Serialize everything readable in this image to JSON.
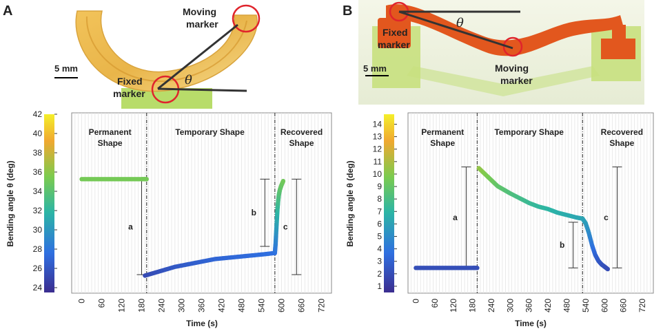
{
  "colors": {
    "dark_blue": "#3b2d8f",
    "blue": "#2f6fe0",
    "teal": "#2cb5a5",
    "green": "#7ccb4e",
    "orange": "#f0a830",
    "yellow": "#f4ef2a",
    "photo_a_specimen": "#e8c568",
    "photo_b_specimen": "#e2571e",
    "photo_green": "#b8dc6a",
    "marker_red": "#e0242c"
  },
  "panels": [
    {
      "label": "A",
      "photo": {
        "scale_bar": "5 mm",
        "moving_marker": [
          "Moving",
          "marker"
        ],
        "fixed_marker": [
          "Fixed",
          "marker"
        ],
        "angle_symbol": "θ"
      },
      "chart_data": {
        "type": "scatter",
        "title": "",
        "xlabel": "Time (s)",
        "ylabel": "Bending angle θ (deg)",
        "xlim": [
          -30,
          750
        ],
        "ylim": [
          23.5,
          42
        ],
        "x_ticks": [
          0,
          60,
          120,
          180,
          240,
          300,
          360,
          420,
          480,
          540,
          600,
          660,
          720
        ],
        "colorbar_ticks": [
          24,
          26,
          28,
          30,
          32,
          34,
          36,
          38,
          40,
          42
        ],
        "colorbar_range": [
          23.5,
          42
        ],
        "phase_boundaries": [
          195,
          580
        ],
        "phases": [
          {
            "lines": [
              "Permanent",
              "Shape"
            ],
            "x_center": 85
          },
          {
            "lines": [
              "Temporary Shape"
            ],
            "x_center": 385
          },
          {
            "lines": [
              "Recovered",
              "Shape"
            ],
            "x_center": 660
          }
        ],
        "series": [
          {
            "name": "permanent",
            "x": [
              0,
              30,
              60,
              90,
              120,
              150,
              180,
              195
            ],
            "y": [
              35.2,
              35.2,
              35.2,
              35.2,
              35.2,
              35.2,
              35.2,
              35.2
            ]
          },
          {
            "name": "temporary",
            "x": [
              190,
              220,
              250,
              280,
              310,
              340,
              370,
              400,
              430,
              460,
              490,
              520,
              550,
              575
            ],
            "y": [
              25.3,
              25.6,
              25.9,
              26.2,
              26.4,
              26.6,
              26.8,
              27.0,
              27.1,
              27.2,
              27.3,
              27.4,
              27.5,
              27.6
            ]
          },
          {
            "name": "recovery",
            "x": [
              580,
              582,
              584,
              586,
              588,
              590,
              592,
              595,
              600,
              605
            ],
            "y": [
              27.6,
              28.5,
              29.8,
              31.0,
              32.2,
              33.0,
              33.6,
              34.1,
              34.6,
              35.0
            ]
          }
        ],
        "brackets": [
          {
            "label": "a",
            "x": 180,
            "y1": 25.4,
            "y2": 35.2
          },
          {
            "label": "b",
            "x": 550,
            "y1": 28.3,
            "y2": 35.2
          },
          {
            "label": "c",
            "x": 645,
            "y1": 25.4,
            "y2": 35.2
          }
        ]
      }
    },
    {
      "label": "B",
      "photo": {
        "scale_bar": "5 mm",
        "moving_marker": [
          "Moving",
          "marker"
        ],
        "fixed_marker": [
          "Fixed",
          "marker"
        ],
        "angle_symbol": "θ"
      },
      "chart_data": {
        "type": "scatter",
        "title": "",
        "xlabel": "Time (s)",
        "ylabel": "Bending angle θ (deg)",
        "xlim": [
          -25,
          755
        ],
        "ylim": [
          0,
          15
        ],
        "x_ticks": [
          0,
          60,
          120,
          180,
          240,
          300,
          360,
          420,
          480,
          540,
          600,
          660,
          720
        ],
        "colorbar_ticks": [
          1,
          2,
          3,
          4,
          5,
          6,
          7,
          8,
          9,
          10,
          11,
          12,
          13,
          14
        ],
        "colorbar_range": [
          0.5,
          14.8
        ],
        "phase_boundaries": [
          195,
          530
        ],
        "phases": [
          {
            "lines": [
              "Permanent",
              "Shape"
            ],
            "x_center": 85
          },
          {
            "lines": [
              "Temporary Shape"
            ],
            "x_center": 360
          },
          {
            "lines": [
              "Recovered",
              "Shape"
            ],
            "x_center": 655
          }
        ],
        "series": [
          {
            "name": "permanent",
            "x": [
              0,
              30,
              60,
              90,
              120,
              150,
              180,
              195
            ],
            "y": [
              2.1,
              2.1,
              2.1,
              2.1,
              2.1,
              2.1,
              2.1,
              2.1
            ]
          },
          {
            "name": "temporary",
            "x": [
              200,
              220,
              240,
              260,
              280,
              300,
              330,
              360,
              390,
              420,
              450,
              480,
              510,
              530
            ],
            "y": [
              10.4,
              9.9,
              9.4,
              8.9,
              8.6,
              8.3,
              7.9,
              7.5,
              7.2,
              7.0,
              6.7,
              6.5,
              6.3,
              6.2
            ]
          },
          {
            "name": "recovery",
            "x": [
              530,
              540,
              550,
              560,
              570,
              580,
              590,
              600,
              610
            ],
            "y": [
              6.2,
              5.8,
              5.0,
              4.0,
              3.2,
              2.7,
              2.4,
              2.2,
              2.0
            ]
          }
        ],
        "brackets": [
          {
            "label": "a",
            "x": 160,
            "y1": 2.1,
            "y2": 10.5
          },
          {
            "label": "b",
            "x": 500,
            "y1": 2.1,
            "y2": 5.9
          },
          {
            "label": "c",
            "x": 640,
            "y1": 2.1,
            "y2": 10.5
          }
        ]
      }
    }
  ]
}
